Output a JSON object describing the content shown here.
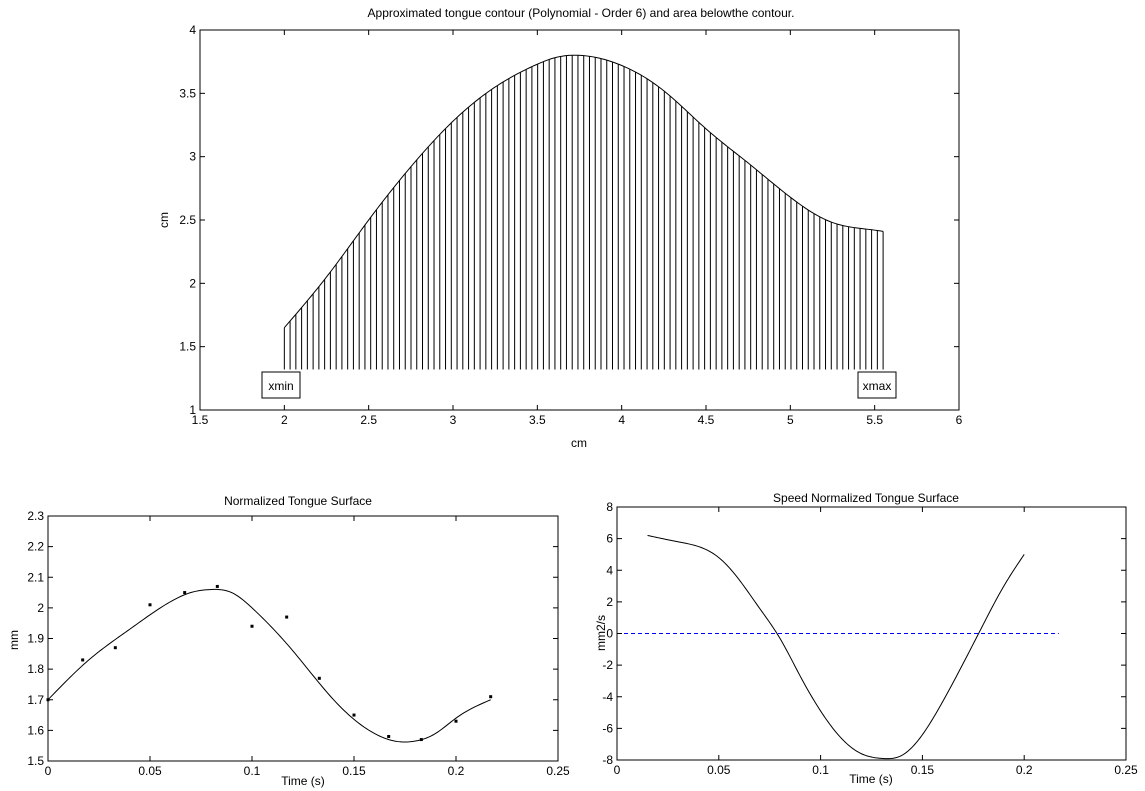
{
  "chart_data": [
    {
      "type": "area",
      "title": "Approximated tongue contour (Polynomial - Order 6) and area belowthe contour.",
      "xlabel": "cm",
      "ylabel": "cm",
      "xlim": [
        1.5,
        6
      ],
      "ylim": [
        1,
        4
      ],
      "xticks": [
        "1.5",
        "2",
        "2.5",
        "3",
        "3.5",
        "4",
        "4.5",
        "5",
        "5.5",
        "6"
      ],
      "yticks": [
        "1",
        "1.5",
        "2",
        "2.5",
        "3",
        "3.5",
        "4"
      ],
      "hatch_baseline": 1.32,
      "contour": {
        "x": [
          2.0,
          2.25,
          2.5,
          2.75,
          3.0,
          3.25,
          3.5,
          3.6,
          3.75,
          4.0,
          4.25,
          4.5,
          4.75,
          5.0,
          5.25,
          5.5,
          5.55
        ],
        "y": [
          1.65,
          2.05,
          2.5,
          2.92,
          3.28,
          3.55,
          3.73,
          3.78,
          3.8,
          3.72,
          3.52,
          3.22,
          2.95,
          2.68,
          2.48,
          2.42,
          2.41
        ]
      },
      "annotations": [
        {
          "text": "xmin",
          "x": 2.0
        },
        {
          "text": "xmax",
          "x": 5.55
        }
      ]
    },
    {
      "type": "scatter",
      "title": "Normalized Tongue Surface",
      "xlabel": "Time (s)",
      "ylabel": "mm",
      "xlim": [
        0,
        0.25
      ],
      "ylim": [
        1.5,
        2.3
      ],
      "xticks": [
        "0",
        "0.05",
        "0.1",
        "0.15",
        "0.2",
        "0.25"
      ],
      "yticks": [
        "1.5",
        "1.6",
        "1.7",
        "1.8",
        "1.9",
        "2",
        "2.1",
        "2.2",
        "2.3"
      ],
      "points": {
        "x": [
          0,
          0.017,
          0.033,
          0.05,
          0.067,
          0.083,
          0.1,
          0.117,
          0.133,
          0.15,
          0.167,
          0.183,
          0.2,
          0.217
        ],
        "y": [
          1.7,
          1.83,
          1.87,
          2.01,
          2.05,
          2.07,
          1.94,
          1.97,
          1.77,
          1.65,
          1.58,
          1.57,
          1.63,
          1.71
        ]
      },
      "fit": {
        "x": [
          0,
          0.02,
          0.04,
          0.06,
          0.07,
          0.08,
          0.09,
          0.1,
          0.12,
          0.14,
          0.16,
          0.17,
          0.18,
          0.19,
          0.2,
          0.217
        ],
        "y": [
          1.7,
          1.83,
          1.93,
          2.02,
          2.05,
          2.06,
          2.05,
          2.0,
          1.86,
          1.7,
          1.59,
          1.565,
          1.565,
          1.59,
          1.64,
          1.7
        ]
      }
    },
    {
      "type": "line",
      "title": "Speed Normalized Tongue Surface",
      "xlabel": "Time (s)",
      "ylabel": "mm2/s",
      "xlim": [
        0,
        0.25
      ],
      "ylim": [
        -8,
        8
      ],
      "xticks": [
        "0",
        "0.05",
        "0.1",
        "0.15",
        "0.2",
        "0.25"
      ],
      "yticks": [
        "-8",
        "-6",
        "-4",
        "-2",
        "0",
        "2",
        "4",
        "6",
        "8"
      ],
      "series": [
        {
          "x": [
            0.015,
            0.03,
            0.04,
            0.05,
            0.06,
            0.07,
            0.08,
            0.09,
            0.1,
            0.11,
            0.12,
            0.13,
            0.135,
            0.14,
            0.15,
            0.16,
            0.17,
            0.18,
            0.19,
            0.2
          ],
          "y": [
            6.2,
            5.8,
            5.5,
            4.8,
            3.4,
            1.6,
            -0.3,
            -2.7,
            -4.9,
            -6.6,
            -7.6,
            -7.9,
            -7.9,
            -7.7,
            -6.4,
            -4.3,
            -1.9,
            0.6,
            3.0,
            5.0
          ]
        }
      ],
      "reference_line": {
        "y": 0,
        "x": [
          0,
          0.217
        ],
        "color": "#0000ff"
      }
    }
  ]
}
